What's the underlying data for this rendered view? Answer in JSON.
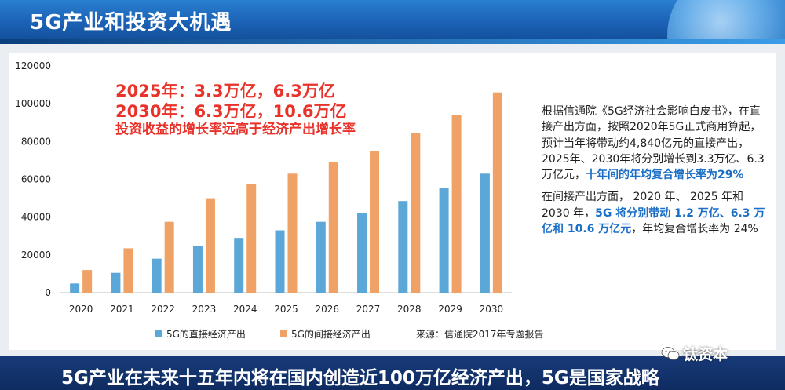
{
  "page": {
    "title": "5G产业和投资大机遇",
    "footer": "5G产业在未来十五年内将在国内创造近100万亿经济产出，5G是国家战略",
    "watermark": "钛资本"
  },
  "callout": {
    "line1": "2025年：3.3万亿，6.3万亿",
    "line2": "2030年：6.3万亿，10.6万亿",
    "line3": "投资收益的增长率远高于经济产出增长率"
  },
  "side_text": {
    "p1_normal": "根据信通院《5G经济社会影响白皮书》，在直接产出方面，按照2020年5G正式商用算起，预计当年将带动约4,840亿元的直接产出，2025年、2030年将分别增长到3.3万亿、6.3万亿元，",
    "p1_highlight": "十年间的年均复合增长率为29%",
    "p2_normal_a": "在间接产出方面， 2020 年、 2025 年和 2030 年，",
    "p2_highlight": "5G 将分别带动 1.2 万亿、6.3 万亿和 10.6 万亿元",
    "p2_normal_b": "，年均复合增长率为 24%"
  },
  "source": "来源：信通院2017年专题报告",
  "colors": {
    "direct": "#5ba7d8",
    "indirect": "#f0a266",
    "callout": "#e8322a",
    "highlight": "#1b6fc7"
  },
  "chart_data": {
    "type": "bar",
    "categories": [
      "2020",
      "2021",
      "2022",
      "2023",
      "2024",
      "2025",
      "2026",
      "2027",
      "2028",
      "2029",
      "2030"
    ],
    "series": [
      {
        "name": "5G的直接经济产出",
        "values": [
          4840,
          10500,
          18000,
          24500,
          29000,
          33000,
          37500,
          42000,
          48500,
          55500,
          63000
        ]
      },
      {
        "name": "5G的间接经济产出",
        "values": [
          12000,
          23500,
          37500,
          50000,
          57500,
          63000,
          69000,
          75000,
          84500,
          94000,
          106000
        ]
      }
    ],
    "ylim": [
      0,
      120000
    ],
    "yticks": [
      "0",
      "20000",
      "40000",
      "60000",
      "80000",
      "100000",
      "120000"
    ],
    "grid": false,
    "legend": "bottom"
  }
}
